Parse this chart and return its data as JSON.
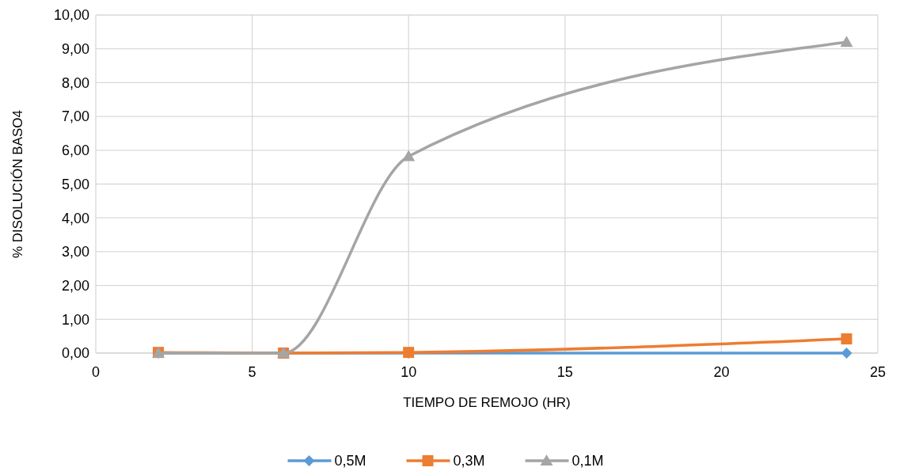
{
  "chart_data": {
    "type": "line",
    "xlabel": "TIEMPO DE REMOJO (HR)",
    "ylabel": "% DISOLUCIÓN BASO4",
    "x": [
      2,
      6,
      10,
      24
    ],
    "series": [
      {
        "name": "0,5M",
        "color": "#5b9bd5",
        "marker": "diamond",
        "values": [
          0,
          0,
          0,
          0
        ]
      },
      {
        "name": "0,3M",
        "color": "#ed7d31",
        "marker": "square",
        "values": [
          0.02,
          0,
          0.02,
          0.42
        ]
      },
      {
        "name": "0,1M",
        "color": "#a5a5a5",
        "marker": "triangle",
        "values": [
          0,
          0,
          5.82,
          9.2
        ]
      }
    ],
    "xlim": [
      0,
      25
    ],
    "xticks": [
      0,
      5,
      10,
      15,
      20,
      25
    ],
    "ylim": [
      0,
      10
    ],
    "yticks": [
      {
        "value": 0,
        "label": "0,00"
      },
      {
        "value": 1,
        "label": "1,00"
      },
      {
        "value": 2,
        "label": "2,00"
      },
      {
        "value": 3,
        "label": "3,00"
      },
      {
        "value": 4,
        "label": "4,00"
      },
      {
        "value": 5,
        "label": "5,00"
      },
      {
        "value": 6,
        "label": "6,00"
      },
      {
        "value": 7,
        "label": "7,00"
      },
      {
        "value": 8,
        "label": "8,00"
      },
      {
        "value": 9,
        "label": "9,00"
      },
      {
        "value": 10,
        "label": "10,00"
      }
    ],
    "grid": true,
    "legend": "bottom"
  }
}
